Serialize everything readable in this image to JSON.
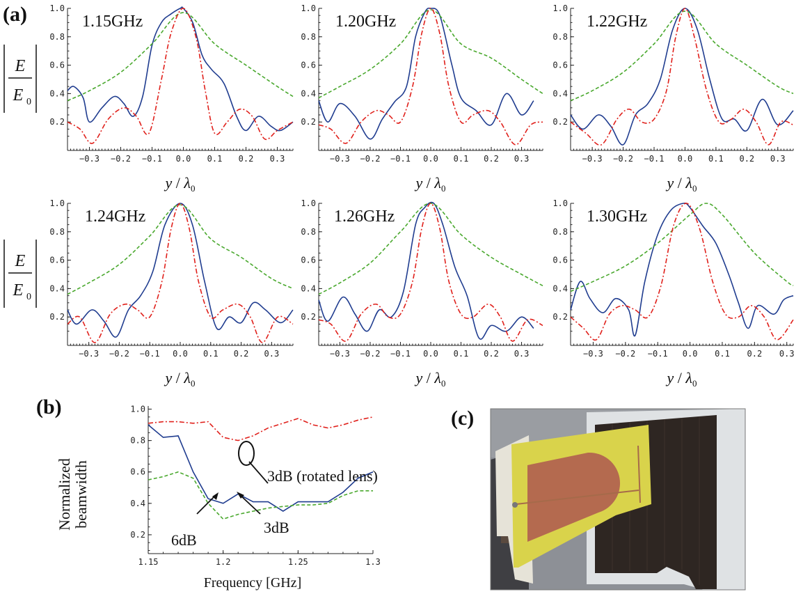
{
  "panel_labels": {
    "a": "(a)",
    "b": "(b)",
    "c": "(c)"
  },
  "ylabel_a": {
    "num": "E",
    "den": "E",
    "den_sub": "0"
  },
  "xlabel_a": {
    "y": "y",
    "slash": "/",
    "lambda": "λ",
    "sub": "0"
  },
  "colors": {
    "blue": "#1f3c8f",
    "green": "#49a82d",
    "red": "#e0201b"
  },
  "chart_data": [
    {
      "type": "line",
      "title": "1.15GHz",
      "xlim": [
        -0.37,
        0.35
      ],
      "ylim": [
        0,
        1.0
      ],
      "xticks": [
        "-0.3",
        "-0.2",
        "-0.1",
        "0.0",
        "0.1",
        "0.2",
        "0.3"
      ],
      "yticks": [
        "0.2",
        "0.4",
        "0.6",
        "0.8",
        "1.0"
      ],
      "series": [
        {
          "color": "blue",
          "style": "solid",
          "x": [
            -0.37,
            -0.35,
            -0.32,
            -0.3,
            -0.26,
            -0.22,
            -0.19,
            -0.16,
            -0.13,
            -0.1,
            -0.07,
            -0.04,
            -0.01,
            0.0,
            0.03,
            0.06,
            0.09,
            0.13,
            0.17,
            0.2,
            0.24,
            0.28,
            0.31,
            0.35
          ],
          "y": [
            0.42,
            0.45,
            0.37,
            0.2,
            0.3,
            0.38,
            0.33,
            0.24,
            0.38,
            0.74,
            0.9,
            0.96,
            1.0,
            1.0,
            0.9,
            0.67,
            0.57,
            0.47,
            0.24,
            0.14,
            0.24,
            0.17,
            0.14,
            0.2
          ]
        },
        {
          "color": "green",
          "style": "dashed",
          "x": [
            -0.37,
            -0.3,
            -0.2,
            -0.1,
            0.0,
            0.1,
            0.2,
            0.3,
            0.35
          ],
          "y": [
            0.35,
            0.42,
            0.55,
            0.75,
            0.97,
            0.75,
            0.6,
            0.45,
            0.38
          ]
        },
        {
          "color": "red",
          "style": "dashdot",
          "x": [
            -0.37,
            -0.33,
            -0.29,
            -0.24,
            -0.19,
            -0.15,
            -0.11,
            -0.07,
            -0.04,
            0.0,
            0.04,
            0.07,
            0.1,
            0.14,
            0.18,
            0.22,
            0.26,
            0.3,
            0.35
          ],
          "y": [
            0.2,
            0.15,
            0.05,
            0.22,
            0.3,
            0.24,
            0.12,
            0.5,
            0.82,
            1.0,
            0.8,
            0.42,
            0.12,
            0.2,
            0.29,
            0.24,
            0.08,
            0.14,
            0.2
          ]
        }
      ]
    },
    {
      "type": "line",
      "title": "1.20GHz",
      "xlim": [
        -0.37,
        0.37
      ],
      "ylim": [
        0,
        1.0
      ],
      "xticks": [
        "-0.3",
        "-0.2",
        "-0.1",
        "0.0",
        "0.1",
        "0.2",
        "0.3"
      ],
      "yticks": [
        "0.2",
        "0.4",
        "0.6",
        "0.8",
        "1.0"
      ],
      "series": [
        {
          "color": "blue",
          "style": "solid",
          "x": [
            -0.37,
            -0.34,
            -0.3,
            -0.25,
            -0.2,
            -0.16,
            -0.12,
            -0.08,
            -0.05,
            -0.02,
            0.0,
            0.03,
            0.07,
            0.1,
            0.15,
            0.2,
            0.25,
            0.3,
            0.34
          ],
          "y": [
            0.35,
            0.2,
            0.33,
            0.24,
            0.08,
            0.22,
            0.34,
            0.45,
            0.8,
            0.97,
            1.0,
            0.95,
            0.6,
            0.37,
            0.28,
            0.18,
            0.4,
            0.25,
            0.35
          ]
        },
        {
          "color": "green",
          "style": "dashed",
          "x": [
            -0.37,
            -0.3,
            -0.2,
            -0.1,
            0.0,
            0.1,
            0.2,
            0.3,
            0.37
          ],
          "y": [
            0.37,
            0.45,
            0.57,
            0.75,
            0.99,
            0.75,
            0.65,
            0.5,
            0.4
          ]
        },
        {
          "color": "red",
          "style": "dashdot",
          "x": [
            -0.37,
            -0.33,
            -0.28,
            -0.23,
            -0.18,
            -0.14,
            -0.1,
            -0.06,
            -0.03,
            0.0,
            0.03,
            0.06,
            0.1,
            0.14,
            0.19,
            0.23,
            0.28,
            0.33,
            0.37
          ],
          "y": [
            0.18,
            0.15,
            0.05,
            0.2,
            0.28,
            0.25,
            0.2,
            0.45,
            0.82,
            1.0,
            0.82,
            0.45,
            0.2,
            0.25,
            0.28,
            0.2,
            0.04,
            0.18,
            0.2
          ]
        }
      ]
    },
    {
      "type": "line",
      "title": "1.22GHz",
      "xlim": [
        -0.37,
        0.35
      ],
      "ylim": [
        0,
        1.0
      ],
      "xticks": [
        "-0.3",
        "-0.2",
        "-0.1",
        "0.0",
        "0.1",
        "0.2",
        "0.3"
      ],
      "yticks": [
        "0.2",
        "0.4",
        "0.6",
        "0.8",
        "1.0"
      ],
      "series": [
        {
          "color": "blue",
          "style": "solid",
          "x": [
            -0.37,
            -0.33,
            -0.28,
            -0.24,
            -0.2,
            -0.16,
            -0.12,
            -0.08,
            -0.04,
            0.0,
            0.04,
            0.08,
            0.12,
            0.16,
            0.2,
            0.25,
            0.3,
            0.35
          ],
          "y": [
            0.25,
            0.15,
            0.25,
            0.17,
            0.04,
            0.25,
            0.33,
            0.5,
            0.85,
            1.0,
            0.85,
            0.5,
            0.22,
            0.22,
            0.14,
            0.36,
            0.18,
            0.28
          ]
        },
        {
          "color": "green",
          "style": "dashed",
          "x": [
            -0.37,
            -0.3,
            -0.2,
            -0.1,
            0.0,
            0.1,
            0.2,
            0.3,
            0.35
          ],
          "y": [
            0.35,
            0.42,
            0.55,
            0.75,
            0.98,
            0.75,
            0.6,
            0.45,
            0.4
          ]
        },
        {
          "color": "red",
          "style": "dashdot",
          "x": [
            -0.37,
            -0.32,
            -0.27,
            -0.22,
            -0.18,
            -0.14,
            -0.1,
            -0.06,
            -0.03,
            0.0,
            0.03,
            0.07,
            0.11,
            0.15,
            0.19,
            0.23,
            0.27,
            0.31,
            0.35
          ],
          "y": [
            0.2,
            0.12,
            0.04,
            0.22,
            0.29,
            0.2,
            0.22,
            0.42,
            0.8,
            1.0,
            0.8,
            0.42,
            0.2,
            0.22,
            0.29,
            0.2,
            0.04,
            0.2,
            0.18
          ]
        }
      ]
    },
    {
      "type": "line",
      "title": "1.24GHz",
      "xlim": [
        -0.37,
        0.37
      ],
      "ylim": [
        0,
        1.0
      ],
      "xticks": [
        "-0.3",
        "-0.2",
        "-0.1",
        "0.0",
        "0.1",
        "0.2",
        "0.3"
      ],
      "yticks": [
        "0.2",
        "0.4",
        "0.6",
        "0.8",
        "1.0"
      ],
      "series": [
        {
          "color": "blue",
          "style": "solid",
          "x": [
            -0.37,
            -0.34,
            -0.29,
            -0.25,
            -0.21,
            -0.17,
            -0.13,
            -0.09,
            -0.05,
            0.0,
            0.04,
            0.08,
            0.12,
            0.16,
            0.2,
            0.24,
            0.28,
            0.33,
            0.37
          ],
          "y": [
            0.25,
            0.15,
            0.25,
            0.17,
            0.06,
            0.25,
            0.35,
            0.52,
            0.85,
            1.0,
            0.85,
            0.45,
            0.12,
            0.2,
            0.16,
            0.3,
            0.25,
            0.16,
            0.25
          ]
        },
        {
          "color": "green",
          "style": "dashed",
          "x": [
            -0.37,
            -0.3,
            -0.2,
            -0.1,
            0.0,
            0.1,
            0.2,
            0.3,
            0.37
          ],
          "y": [
            0.36,
            0.44,
            0.57,
            0.77,
            0.99,
            0.75,
            0.62,
            0.47,
            0.4
          ]
        },
        {
          "color": "red",
          "style": "dashdot",
          "x": [
            -0.37,
            -0.33,
            -0.28,
            -0.23,
            -0.18,
            -0.14,
            -0.1,
            -0.06,
            -0.03,
            0.0,
            0.03,
            0.06,
            0.1,
            0.14,
            0.19,
            0.23,
            0.27,
            0.32,
            0.37
          ],
          "y": [
            0.15,
            0.2,
            0.02,
            0.22,
            0.29,
            0.25,
            0.2,
            0.45,
            0.82,
            1.0,
            0.82,
            0.45,
            0.2,
            0.25,
            0.29,
            0.2,
            0.02,
            0.2,
            0.15
          ]
        }
      ]
    },
    {
      "type": "line",
      "title": "1.26GHz",
      "xlim": [
        -0.37,
        0.37
      ],
      "ylim": [
        0,
        1.0
      ],
      "xticks": [
        "-0.3",
        "-0.2",
        "-0.1",
        "0.0",
        "0.1",
        "0.2",
        "0.3"
      ],
      "yticks": [
        "0.2",
        "0.4",
        "0.6",
        "0.8",
        "1.0"
      ],
      "series": [
        {
          "color": "blue",
          "style": "solid",
          "x": [
            -0.37,
            -0.34,
            -0.29,
            -0.25,
            -0.21,
            -0.17,
            -0.13,
            -0.09,
            -0.05,
            -0.02,
            0.01,
            0.04,
            0.08,
            0.12,
            0.16,
            0.2,
            0.25,
            0.3,
            0.34
          ],
          "y": [
            0.32,
            0.17,
            0.34,
            0.22,
            0.1,
            0.25,
            0.2,
            0.38,
            0.85,
            0.97,
            1.0,
            0.85,
            0.55,
            0.35,
            0.05,
            0.14,
            0.1,
            0.2,
            0.12
          ]
        },
        {
          "color": "green",
          "style": "dashed",
          "x": [
            -0.37,
            -0.3,
            -0.2,
            -0.1,
            0.0,
            0.1,
            0.2,
            0.3,
            0.37
          ],
          "y": [
            0.36,
            0.44,
            0.58,
            0.8,
            1.0,
            0.78,
            0.62,
            0.5,
            0.42
          ]
        },
        {
          "color": "red",
          "style": "dashdot",
          "x": [
            -0.37,
            -0.33,
            -0.28,
            -0.23,
            -0.18,
            -0.14,
            -0.1,
            -0.06,
            -0.03,
            0.0,
            0.03,
            0.06,
            0.1,
            0.14,
            0.19,
            0.23,
            0.27,
            0.32,
            0.37
          ],
          "y": [
            0.18,
            0.15,
            0.03,
            0.22,
            0.29,
            0.2,
            0.22,
            0.45,
            0.82,
            1.0,
            0.82,
            0.45,
            0.22,
            0.2,
            0.29,
            0.2,
            0.03,
            0.18,
            0.14
          ]
        }
      ]
    },
    {
      "type": "line",
      "title": "1.30GHz",
      "xlim": [
        -0.37,
        0.32
      ],
      "ylim": [
        0,
        1.0
      ],
      "xticks": [
        "-0.3",
        "-0.2",
        "-0.1",
        "0.0",
        "0.1",
        "0.2",
        "0.3"
      ],
      "yticks": [
        "0.2",
        "0.4",
        "0.6",
        "0.8",
        "1.0"
      ],
      "series": [
        {
          "color": "blue",
          "style": "solid",
          "x": [
            -0.37,
            -0.34,
            -0.31,
            -0.27,
            -0.23,
            -0.19,
            -0.17,
            -0.14,
            -0.1,
            -0.06,
            -0.02,
            0.0,
            0.04,
            0.08,
            0.12,
            0.15,
            0.18,
            0.21,
            0.26,
            0.29,
            0.32
          ],
          "y": [
            0.25,
            0.45,
            0.33,
            0.23,
            0.33,
            0.25,
            0.07,
            0.45,
            0.78,
            0.95,
            1.0,
            0.97,
            0.84,
            0.72,
            0.5,
            0.3,
            0.12,
            0.28,
            0.22,
            0.32,
            0.35
          ]
        },
        {
          "color": "green",
          "style": "dashed",
          "x": [
            -0.37,
            -0.3,
            -0.2,
            -0.1,
            0.0,
            0.05,
            0.1,
            0.2,
            0.3,
            0.32
          ],
          "y": [
            0.38,
            0.45,
            0.56,
            0.72,
            0.92,
            1.0,
            0.92,
            0.65,
            0.45,
            0.42
          ]
        },
        {
          "color": "red",
          "style": "dashdot",
          "x": [
            -0.37,
            -0.33,
            -0.29,
            -0.25,
            -0.21,
            -0.17,
            -0.13,
            -0.09,
            -0.05,
            -0.01,
            0.03,
            0.07,
            0.11,
            0.15,
            0.19,
            0.23,
            0.27,
            0.32
          ],
          "y": [
            0.2,
            0.12,
            0.04,
            0.22,
            0.28,
            0.25,
            0.2,
            0.42,
            0.85,
            1.0,
            0.82,
            0.45,
            0.22,
            0.2,
            0.28,
            0.2,
            0.04,
            0.18
          ]
        }
      ]
    },
    {
      "type": "line",
      "xlabel": "Frequency [GHz]",
      "ylabel": "Normalized beamwidth",
      "xlim": [
        1.15,
        1.3
      ],
      "ylim": [
        0.08,
        1.02
      ],
      "xticks": [
        "1.15",
        "1.2",
        "1.25",
        "1.3"
      ],
      "yticks": [
        "0.2",
        "0.4",
        "0.6",
        "0.8",
        "1.0"
      ],
      "annotations": [
        "3dB (rotated lens)",
        "3dB",
        "6dB"
      ],
      "series": [
        {
          "color": "red",
          "style": "dashdot",
          "x": [
            1.15,
            1.16,
            1.17,
            1.18,
            1.19,
            1.2,
            1.21,
            1.22,
            1.23,
            1.24,
            1.25,
            1.26,
            1.27,
            1.28,
            1.29,
            1.3
          ],
          "y": [
            0.91,
            0.92,
            0.92,
            0.91,
            0.92,
            0.82,
            0.8,
            0.83,
            0.88,
            0.91,
            0.94,
            0.9,
            0.88,
            0.9,
            0.93,
            0.95
          ]
        },
        {
          "color": "blue",
          "style": "solid",
          "x": [
            1.15,
            1.16,
            1.17,
            1.18,
            1.19,
            1.2,
            1.21,
            1.22,
            1.23,
            1.24,
            1.25,
            1.26,
            1.27,
            1.28,
            1.29,
            1.3
          ],
          "y": [
            0.9,
            0.82,
            0.83,
            0.6,
            0.43,
            0.4,
            0.46,
            0.41,
            0.41,
            0.35,
            0.41,
            0.41,
            0.41,
            0.47,
            0.56,
            0.6
          ]
        },
        {
          "color": "green",
          "style": "dashed",
          "x": [
            1.15,
            1.16,
            1.17,
            1.18,
            1.19,
            1.2,
            1.21,
            1.22,
            1.23,
            1.24,
            1.25,
            1.26,
            1.27,
            1.28,
            1.29,
            1.3
          ],
          "y": [
            0.55,
            0.57,
            0.6,
            0.56,
            0.4,
            0.3,
            0.33,
            0.35,
            0.37,
            0.38,
            0.39,
            0.39,
            0.4,
            0.45,
            0.48,
            0.48
          ]
        }
      ]
    }
  ]
}
